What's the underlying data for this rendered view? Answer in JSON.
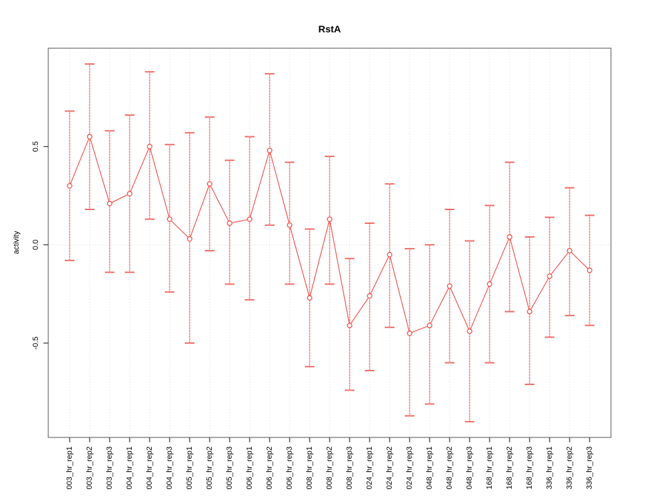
{
  "page": {
    "background": "#ffffff"
  },
  "chart_data": {
    "type": "line",
    "subtype": "points-with-error-bars",
    "title": "RstA",
    "ylabel": "activity",
    "xlabel": "",
    "categories": [
      "003_hr_rep1",
      "003_hr_rep2",
      "003_hr_rep3",
      "004_hr_rep1",
      "004_hr_rep2",
      "004_hr_rep3",
      "005_hr_rep1",
      "005_hr_rep2",
      "005_hr_rep3",
      "006_hr_rep1",
      "006_hr_rep2",
      "006_hr_rep3",
      "008_hr_rep1",
      "008_hr_rep2",
      "008_hr_rep3",
      "024_hr_rep1",
      "024_hr_rep2",
      "024_hr_rep3",
      "048_hr_rep1",
      "048_hr_rep2",
      "048_hr_rep3",
      "168_hr_rep1",
      "168_hr_rep2",
      "168_hr_rep3",
      "336_hr_rep1",
      "336_hr_rep2",
      "336_hr_rep3"
    ],
    "series": [
      {
        "name": "activity",
        "values": [
          0.3,
          0.55,
          0.21,
          0.26,
          0.5,
          0.13,
          0.03,
          0.31,
          0.11,
          0.13,
          0.48,
          0.1,
          -0.27,
          0.13,
          -0.41,
          -0.26,
          -0.05,
          -0.45,
          -0.41,
          -0.21,
          -0.44,
          -0.2,
          0.04,
          -0.34,
          -0.16,
          -0.03,
          -0.13
        ],
        "ci_low": [
          -0.08,
          0.18,
          -0.14,
          -0.14,
          0.13,
          -0.24,
          -0.5,
          -0.03,
          -0.2,
          -0.28,
          0.1,
          -0.2,
          -0.62,
          -0.2,
          -0.74,
          -0.64,
          -0.42,
          -0.87,
          -0.81,
          -0.6,
          -0.9,
          -0.6,
          -0.34,
          -0.71,
          -0.47,
          -0.36,
          -0.41
        ],
        "ci_high": [
          0.68,
          0.92,
          0.58,
          0.66,
          0.88,
          0.51,
          0.57,
          0.65,
          0.43,
          0.55,
          0.87,
          0.42,
          0.08,
          0.45,
          -0.07,
          0.11,
          0.31,
          -0.02,
          0.0,
          0.18,
          0.02,
          0.2,
          0.42,
          0.04,
          0.14,
          0.29,
          0.15
        ]
      }
    ],
    "marker": "open-circle",
    "yticks": [
      -0.5,
      0.0,
      0.5
    ],
    "ytick_labels": [
      "-0.5",
      "0.0",
      "0.5"
    ],
    "ylim": [
      -0.98,
      1.0
    ],
    "grid": {
      "vertical_per_category": true,
      "zero_line": true,
      "style": "dotted"
    },
    "legend": null,
    "colors": {
      "series": "#ef4944",
      "grid": "#d9d9d9",
      "box": "#6e6e6e",
      "tick": "#333333",
      "text": "#000000"
    }
  }
}
